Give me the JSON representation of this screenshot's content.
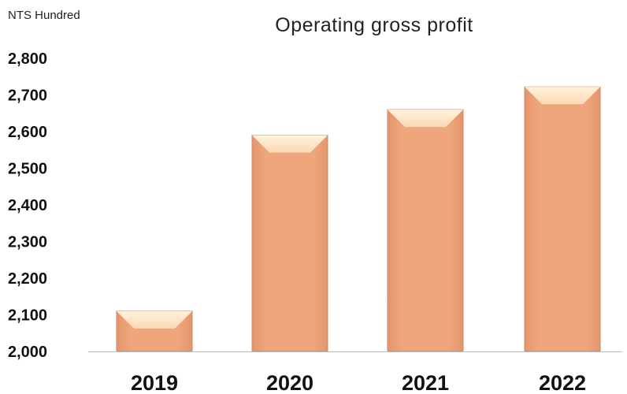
{
  "chart_data": {
    "type": "bar",
    "title": "Operating gross profit",
    "unit_label": "NTS Hundred",
    "xlabel": "",
    "ylabel": "",
    "categories": [
      "2019",
      "2020",
      "2021",
      "2022"
    ],
    "values": [
      2110,
      2590,
      2660,
      2722
    ],
    "ylim": [
      2000,
      2800
    ],
    "yticks": [
      "2,000",
      "2,100",
      "2,200",
      "2,300",
      "2,400",
      "2,500",
      "2,600",
      "2,700",
      "2,800"
    ],
    "grid": false,
    "legend": "none",
    "colors": {
      "bar_face": "#efa67c",
      "bar_edge": "#c98a64",
      "bar_bevel": "#fbd8b4",
      "bar_bevel_highlight": "#fff3dc",
      "axis": "#bbbbbb"
    }
  }
}
